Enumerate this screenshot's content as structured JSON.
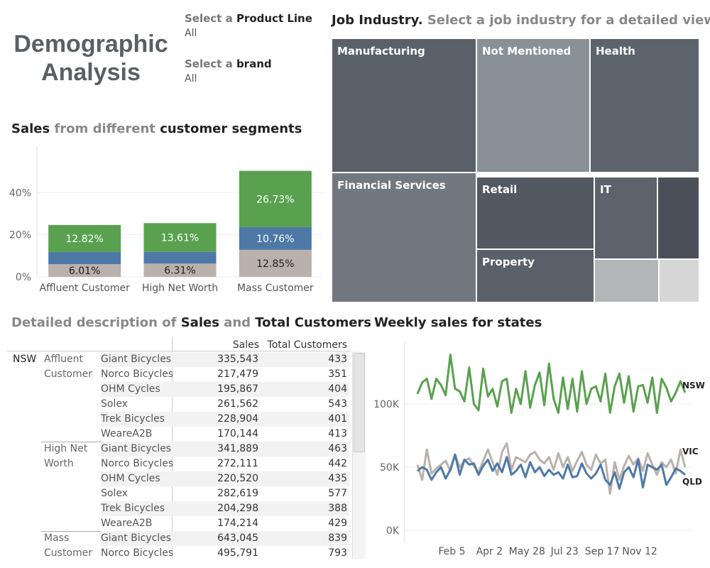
{
  "title_line1": "Demographic",
  "title_line2": "Analysis",
  "filters": {
    "product_line": {
      "prefix": "Select a",
      "label": "Product Line",
      "value": "All"
    },
    "brand": {
      "prefix": "Select a",
      "label": "brand",
      "value": "All"
    }
  },
  "treemap": {
    "title_bold": "Job Industry.",
    "title_light": "Select a job industry for a detailed view",
    "tiles": [
      {
        "label": "Manufacturing",
        "color": "#5a6069"
      },
      {
        "label": "Not Mentioned",
        "color": "#8a9097"
      },
      {
        "label": "Health",
        "color": "#5c636c"
      },
      {
        "label": "Financial Services",
        "color": "#72787f"
      },
      {
        "label": "Retail",
        "color": "#535962"
      },
      {
        "label": "IT",
        "color": "#5c636c"
      },
      {
        "label": "",
        "color": "#4a4f59"
      },
      {
        "label": "Property",
        "color": "#5a6069"
      },
      {
        "label": "",
        "color": "#b3b5b7"
      },
      {
        "label": "",
        "color": "#d6d6d6"
      }
    ]
  },
  "segments": {
    "title_parts": [
      "Sales",
      " from different ",
      "customer segments"
    ],
    "colors": {
      "green": "#59a14f",
      "blue": "#4e79a7",
      "gray": "#bab0ac"
    },
    "chart_data": {
      "type": "bar",
      "stacked": true,
      "categories": [
        "Affluent Customer",
        "High Net Worth",
        "Mass Customer"
      ],
      "series": [
        {
          "values": [
            6.01,
            6.31,
            12.85
          ],
          "labels": [
            "6.01%",
            "6.31%",
            "12.85%"
          ]
        },
        {
          "values": [
            5.8,
            5.6,
            10.76
          ],
          "labels": [
            "",
            "",
            "10.76%"
          ]
        },
        {
          "values": [
            12.82,
            13.61,
            26.73
          ],
          "labels": [
            "12.82%",
            "13.61%",
            "26.73%"
          ]
        }
      ],
      "y_ticks": [
        "0%",
        "20%",
        "40%"
      ],
      "ylim": [
        0,
        62
      ]
    }
  },
  "table": {
    "title_parts": [
      "Detailed description of ",
      "Sales",
      " and ",
      "Total Customers"
    ],
    "headers": {
      "sales": "Sales",
      "customers": "Total Customers"
    },
    "state": "NSW",
    "groups": [
      {
        "segment_lines": [
          "Affluent",
          "Customer"
        ],
        "rows": [
          {
            "brand": "Giant Bicycles",
            "sales": "335,543",
            "customers": "433"
          },
          {
            "brand": "Norco Bicycles",
            "sales": "217,479",
            "customers": "351"
          },
          {
            "brand": "OHM Cycles",
            "sales": "195,867",
            "customers": "404"
          },
          {
            "brand": "Solex",
            "sales": "261,562",
            "customers": "543"
          },
          {
            "brand": "Trek Bicycles",
            "sales": "228,904",
            "customers": "401"
          },
          {
            "brand": "WeareA2B",
            "sales": "170,144",
            "customers": "413"
          }
        ]
      },
      {
        "segment_lines": [
          "High Net",
          "Worth"
        ],
        "rows": [
          {
            "brand": "Giant Bicycles",
            "sales": "341,889",
            "customers": "463"
          },
          {
            "brand": "Norco Bicycles",
            "sales": "272,111",
            "customers": "442"
          },
          {
            "brand": "OHM Cycles",
            "sales": "220,520",
            "customers": "435"
          },
          {
            "brand": "Solex",
            "sales": "282,619",
            "customers": "577"
          },
          {
            "brand": "Trek Bicycles",
            "sales": "204,298",
            "customers": "388"
          },
          {
            "brand": "WeareA2B",
            "sales": "174,214",
            "customers": "429"
          }
        ]
      },
      {
        "segment_lines": [
          "Mass",
          "Customer"
        ],
        "rows": [
          {
            "brand": "Giant Bicycles",
            "sales": "643,045",
            "customers": "839"
          },
          {
            "brand": "Norco Bicycles",
            "sales": "495,791",
            "customers": "793"
          }
        ]
      }
    ]
  },
  "weekly": {
    "title": "Weekly sales for states",
    "chart_data": {
      "type": "line",
      "x_ticks": [
        "Feb 5",
        "Apr 2",
        "May 28",
        "Jul 23",
        "Sep 17",
        "Nov 12"
      ],
      "y_ticks": [
        "0K",
        "50K",
        "100K"
      ],
      "ylim": [
        0,
        150000
      ],
      "series": [
        {
          "name": "NSW",
          "color": "#59a14f",
          "values": [
            108000,
            117000,
            120000,
            104000,
            120000,
            115000,
            107000,
            139000,
            112000,
            110000,
            102000,
            129000,
            100000,
            95000,
            128000,
            106000,
            112000,
            98000,
            118000,
            120000,
            93000,
            112000,
            100000,
            126000,
            97000,
            115000,
            125000,
            99000,
            132000,
            104000,
            93000,
            121000,
            96000,
            120000,
            94000,
            126000,
            100000,
            112000,
            114000,
            102000,
            124000,
            93000,
            114000,
            124000,
            101000,
            122000,
            94000,
            114000,
            115000,
            101000,
            121000,
            93000,
            120000,
            113000,
            102000,
            109000,
            118000,
            109000
          ]
        },
        {
          "name": "VIC",
          "color": "#bab0ac",
          "values": [
            52000,
            40000,
            64000,
            45000,
            49000,
            52000,
            55000,
            47000,
            60000,
            50000,
            55000,
            57000,
            51000,
            46000,
            55000,
            64000,
            54000,
            44000,
            62000,
            69000,
            48000,
            58000,
            56000,
            54000,
            60000,
            62000,
            56000,
            53000,
            58000,
            48000,
            61000,
            50000,
            58000,
            47000,
            55000,
            62000,
            52000,
            48000,
            60000,
            53000,
            56000,
            29000,
            54000,
            40000,
            51000,
            59000,
            52000,
            57000,
            47000,
            61000,
            52000,
            44000,
            54000,
            50000,
            56000,
            45000,
            64000,
            50000
          ]
        },
        {
          "name": "QLD",
          "color": "#4e79a7",
          "values": [
            47000,
            50000,
            48000,
            40000,
            46000,
            50000,
            41000,
            48000,
            60000,
            44000,
            56000,
            52000,
            53000,
            44000,
            51000,
            56000,
            47000,
            53000,
            46000,
            58000,
            44000,
            47000,
            52000,
            42000,
            54000,
            46000,
            50000,
            43000,
            48000,
            44000,
            46000,
            41000,
            52000,
            42000,
            43000,
            53000,
            45000,
            41000,
            45000,
            52000,
            40000,
            36000,
            46000,
            33000,
            46000,
            50000,
            42000,
            56000,
            34000,
            52000,
            50000,
            48000,
            52000,
            36000,
            42000,
            49000,
            47000,
            44000
          ]
        }
      ]
    }
  }
}
